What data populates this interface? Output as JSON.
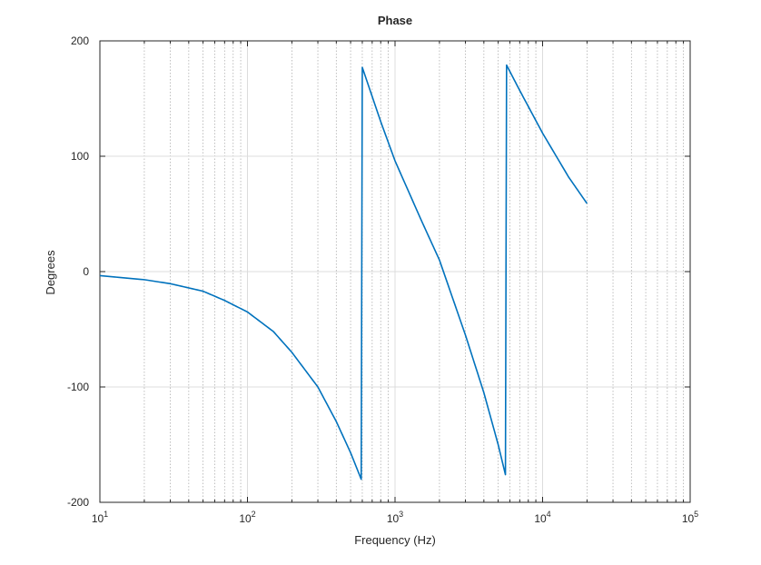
{
  "chart_data": {
    "type": "line",
    "title": "Phase",
    "xlabel": "Frequency (Hz)",
    "ylabel": "Degrees",
    "xscale": "log",
    "xlim": [
      10,
      100000
    ],
    "ylim": [
      -200,
      200
    ],
    "grid": true,
    "minor_grid_x": true,
    "legend": "none",
    "x_ticks": [
      {
        "value": 10,
        "base": "10",
        "exp": "1"
      },
      {
        "value": 100,
        "base": "10",
        "exp": "2"
      },
      {
        "value": 1000,
        "base": "10",
        "exp": "3"
      },
      {
        "value": 10000,
        "base": "10",
        "exp": "4"
      },
      {
        "value": 100000,
        "base": "10",
        "exp": "5"
      }
    ],
    "y_ticks": [
      {
        "value": -200,
        "label": "-200"
      },
      {
        "value": -100,
        "label": "-100"
      },
      {
        "value": 0,
        "label": "0"
      },
      {
        "value": 100,
        "label": "100"
      },
      {
        "value": 200,
        "label": "200"
      }
    ],
    "series": [
      {
        "color": "#0072bd",
        "points": [
          [
            10,
            -3.5
          ],
          [
            20,
            -7
          ],
          [
            30,
            -10.5
          ],
          [
            50,
            -17
          ],
          [
            70,
            -25
          ],
          [
            100,
            -35
          ],
          [
            150,
            -52
          ],
          [
            200,
            -70
          ],
          [
            300,
            -100
          ],
          [
            400,
            -130
          ],
          [
            500,
            -157
          ],
          [
            590,
            -180
          ],
          [
            600,
            177
          ],
          [
            800,
            130
          ],
          [
            1000,
            96
          ],
          [
            1500,
            45
          ],
          [
            2000,
            10
          ],
          [
            3000,
            -55
          ],
          [
            4000,
            -105
          ],
          [
            5000,
            -150
          ],
          [
            5600,
            -176
          ],
          [
            5700,
            179
          ],
          [
            7000,
            157
          ],
          [
            10000,
            120
          ],
          [
            15000,
            82
          ],
          [
            20000,
            59
          ]
        ]
      }
    ]
  }
}
